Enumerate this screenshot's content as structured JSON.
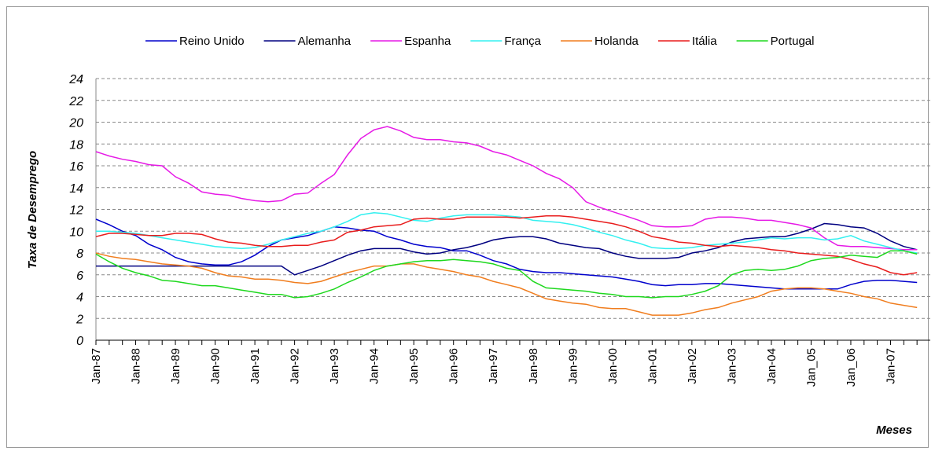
{
  "chart_data": {
    "type": "line",
    "y_label": "Taxa de Desemprego",
    "x_label": "Meses",
    "categories": [
      "Jan-87",
      null,
      null,
      "Jan-88",
      null,
      null,
      "Jan-89",
      null,
      null,
      "Jan-90",
      null,
      null,
      "Jan-91",
      null,
      null,
      "Jan-92",
      null,
      null,
      "Jan-93",
      null,
      null,
      "Jan-94",
      null,
      null,
      "Jan-95",
      null,
      null,
      "Jan-96",
      null,
      null,
      "Jan-97",
      null,
      null,
      "Jan-98",
      null,
      null,
      "Jan-99",
      null,
      null,
      "Jan-00",
      null,
      null,
      "Jan-01",
      null,
      null,
      "Jan-02",
      null,
      null,
      "Jan-03",
      null,
      null,
      "Jan-04",
      null,
      null,
      "Jan_05",
      null,
      null,
      "Jan_06",
      null,
      null,
      "Jan-07",
      null,
      null
    ],
    "ylim": [
      0,
      24
    ],
    "yticks": [
      0,
      2,
      4,
      6,
      8,
      10,
      12,
      14,
      16,
      18,
      20,
      22,
      24
    ],
    "grid": true,
    "legend": "top",
    "series": [
      {
        "name": "Reino Unido",
        "color": "#0000cc",
        "values": [
          11.1,
          10.6,
          10.0,
          9.6,
          8.8,
          8.3,
          7.6,
          7.2,
          7.0,
          6.9,
          6.9,
          7.2,
          7.8,
          8.6,
          9.2,
          9.4,
          9.6,
          10.0,
          10.4,
          10.3,
          10.1,
          10.0,
          9.5,
          9.2,
          8.8,
          8.6,
          8.5,
          8.2,
          8.2,
          7.8,
          7.3,
          7.0,
          6.5,
          6.3,
          6.2,
          6.2,
          6.1,
          6.0,
          5.9,
          5.8,
          5.6,
          5.4,
          5.1,
          5.0,
          5.1,
          5.1,
          5.2,
          5.2,
          5.1,
          5.0,
          4.9,
          4.8,
          4.7,
          4.7,
          4.7,
          4.7,
          4.7,
          5.1,
          5.4,
          5.5,
          5.5,
          5.4,
          5.3
        ]
      },
      {
        "name": "Alemanha",
        "color": "#000080",
        "values": [
          6.8,
          6.8,
          6.8,
          6.8,
          6.8,
          6.8,
          6.8,
          6.8,
          6.8,
          6.8,
          6.8,
          6.8,
          6.8,
          6.8,
          6.8,
          6.0,
          6.4,
          6.8,
          7.3,
          7.8,
          8.2,
          8.4,
          8.4,
          8.4,
          8.1,
          7.9,
          8.0,
          8.3,
          8.5,
          8.8,
          9.2,
          9.4,
          9.5,
          9.5,
          9.3,
          8.9,
          8.7,
          8.5,
          8.4,
          8.0,
          7.7,
          7.5,
          7.5,
          7.5,
          7.6,
          8.0,
          8.2,
          8.5,
          9.0,
          9.3,
          9.4,
          9.5,
          9.5,
          9.8,
          10.2,
          10.7,
          10.6,
          10.4,
          10.3,
          9.8,
          9.1,
          8.6,
          8.3
        ]
      },
      {
        "name": "Espanha",
        "color": "#e619e6",
        "values": [
          17.3,
          16.9,
          16.6,
          16.4,
          16.1,
          16.0,
          15.0,
          14.4,
          13.6,
          13.4,
          13.3,
          13.0,
          12.8,
          12.7,
          12.8,
          13.4,
          13.5,
          14.4,
          15.2,
          17.0,
          18.5,
          19.3,
          19.6,
          19.2,
          18.6,
          18.4,
          18.4,
          18.2,
          18.1,
          17.8,
          17.3,
          17.0,
          16.5,
          16.0,
          15.3,
          14.8,
          14.0,
          12.7,
          12.2,
          11.8,
          11.4,
          11.0,
          10.5,
          10.4,
          10.4,
          10.5,
          11.1,
          11.3,
          11.3,
          11.2,
          11.0,
          11.0,
          10.8,
          10.6,
          10.3,
          9.4,
          8.7,
          8.6,
          8.6,
          8.5,
          8.4,
          8.3,
          8.3
        ]
      },
      {
        "name": "França",
        "color": "#33f0f0",
        "values": [
          10.0,
          10.0,
          9.9,
          9.8,
          9.6,
          9.4,
          9.2,
          9.0,
          8.8,
          8.6,
          8.5,
          8.4,
          8.5,
          8.8,
          9.2,
          9.5,
          9.8,
          10.0,
          10.4,
          10.9,
          11.5,
          11.7,
          11.6,
          11.3,
          11.0,
          10.9,
          11.2,
          11.4,
          11.5,
          11.5,
          11.5,
          11.4,
          11.3,
          11.0,
          10.9,
          10.8,
          10.6,
          10.3,
          9.9,
          9.6,
          9.2,
          8.9,
          8.5,
          8.4,
          8.4,
          8.5,
          8.7,
          8.8,
          8.9,
          9.0,
          9.2,
          9.4,
          9.3,
          9.4,
          9.4,
          9.2,
          9.3,
          9.6,
          9.1,
          8.8,
          8.5,
          8.2,
          8.0
        ]
      },
      {
        "name": "Holanda",
        "color": "#f07d1e",
        "values": [
          8.0,
          7.7,
          7.5,
          7.4,
          7.2,
          7.0,
          6.9,
          6.8,
          6.6,
          6.2,
          5.9,
          5.8,
          5.6,
          5.6,
          5.5,
          5.3,
          5.2,
          5.4,
          5.8,
          6.2,
          6.5,
          6.8,
          6.8,
          7.0,
          7.0,
          6.7,
          6.5,
          6.3,
          6.0,
          5.8,
          5.4,
          5.1,
          4.8,
          4.3,
          3.8,
          3.6,
          3.4,
          3.3,
          3.0,
          2.9,
          2.9,
          2.6,
          2.3,
          2.3,
          2.3,
          2.5,
          2.8,
          3.0,
          3.4,
          3.7,
          4.0,
          4.5,
          4.7,
          4.8,
          4.8,
          4.7,
          4.5,
          4.3,
          4.0,
          3.8,
          3.4,
          3.2,
          3.0
        ]
      },
      {
        "name": "Itália",
        "color": "#e81c1c",
        "values": [
          9.5,
          9.8,
          9.8,
          9.7,
          9.6,
          9.6,
          9.8,
          9.8,
          9.7,
          9.3,
          9.0,
          8.9,
          8.7,
          8.6,
          8.6,
          8.7,
          8.7,
          9.0,
          9.2,
          9.9,
          10.1,
          10.4,
          10.5,
          10.6,
          11.1,
          11.2,
          11.1,
          11.1,
          11.3,
          11.3,
          11.3,
          11.3,
          11.2,
          11.3,
          11.4,
          11.4,
          11.3,
          11.1,
          10.9,
          10.7,
          10.4,
          10.0,
          9.5,
          9.3,
          9.0,
          8.9,
          8.7,
          8.6,
          8.7,
          8.6,
          8.5,
          8.3,
          8.2,
          8.0,
          7.9,
          7.8,
          7.7,
          7.4,
          7.0,
          6.7,
          6.2,
          6.0,
          6.2
        ]
      },
      {
        "name": "Portugal",
        "color": "#1ed81e",
        "values": [
          7.9,
          7.2,
          6.6,
          6.2,
          5.9,
          5.5,
          5.4,
          5.2,
          5.0,
          5.0,
          4.8,
          4.6,
          4.4,
          4.2,
          4.2,
          3.9,
          4.0,
          4.3,
          4.7,
          5.3,
          5.8,
          6.4,
          6.8,
          7.0,
          7.2,
          7.3,
          7.3,
          7.4,
          7.3,
          7.2,
          7.0,
          6.6,
          6.4,
          5.4,
          4.8,
          4.7,
          4.6,
          4.5,
          4.3,
          4.2,
          4.0,
          4.0,
          3.9,
          4.0,
          4.0,
          4.2,
          4.5,
          5.0,
          6.0,
          6.4,
          6.5,
          6.4,
          6.5,
          6.8,
          7.3,
          7.5,
          7.6,
          7.8,
          7.7,
          7.6,
          8.2,
          8.2,
          7.9
        ]
      }
    ]
  }
}
